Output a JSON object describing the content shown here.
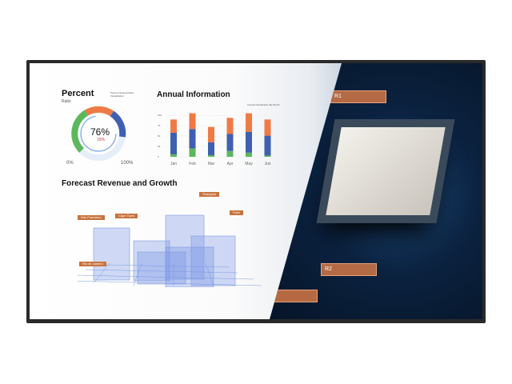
{
  "percent": {
    "title": "Percent",
    "subtitle": "Ratio",
    "note": "Percent Segmentation Visualization",
    "value": "76%",
    "delta": "15%",
    "min": "0%",
    "max": "100%",
    "level": 76
  },
  "annual": {
    "title": "Annual Information",
    "note": "Annual Visualization By Month"
  },
  "forecast": {
    "title": "Forecast Revenue and Growth",
    "labels": [
      "San Francisco",
      "Cape Town",
      "Shanghai",
      "Paris",
      "Rio de Janeiro"
    ]
  },
  "circuit_tags": [
    "R1",
    "R2",
    "R3"
  ],
  "colors": {
    "green": "#5cb85c",
    "blue": "#3f5fb0",
    "orange": "#f07a45",
    "bezel": "#2a2a2a"
  },
  "chart_data": {
    "type": "bar",
    "stacked": true,
    "categories": [
      "Jan",
      "Feb",
      "Mar",
      "Apr",
      "May",
      "Jun"
    ],
    "yticks": [
      "0",
      "25",
      "50",
      "75",
      "100"
    ],
    "ylim": [
      0,
      110
    ],
    "series": [
      {
        "values": [
          6,
          20,
          4,
          14,
          10,
          3
        ],
        "color": "#5cb85c"
      },
      {
        "values": [
          52,
          47,
          31,
          41,
          50,
          48
        ],
        "color": "#3f5fb0"
      },
      {
        "values": [
          32,
          38,
          37,
          39,
          45,
          39
        ],
        "color": "#f07a45"
      }
    ]
  }
}
